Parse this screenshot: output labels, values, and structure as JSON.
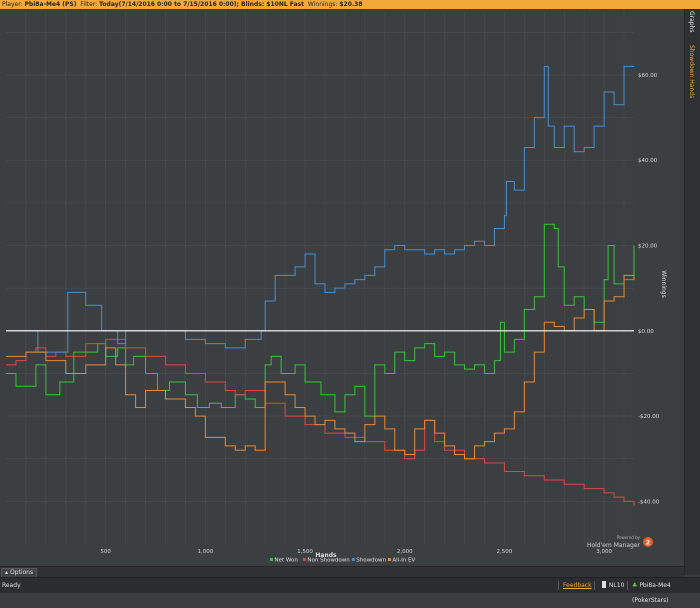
{
  "topbar": {
    "player_label": "Player:",
    "player_value": "Pbi8a-Me4 (PS)",
    "filter_label": "Filter:",
    "filter_value": "Today(7/14/2016 0:00 to 7/15/2016 0:00); Blinds: $10NL Fast",
    "winnings_label": "Winnings:",
    "winnings_value": "$20.38"
  },
  "side_tabs": {
    "graphs": "Graphs",
    "showdown_hands": "Showdown Hands"
  },
  "options_label": "Options",
  "status": {
    "ready": "Ready",
    "feedback": "Feedback",
    "limit": "NL10",
    "player": "Pbi8a-Me4 (PokerStars)"
  },
  "logo": {
    "line1": "Powered by",
    "line2": "Hold'em Manager"
  },
  "colors": {
    "net_won": "#37c33a",
    "non_showdown": "#d84a45",
    "showdown": "#4c8ecf",
    "all_in_ev": "#e58a36",
    "zero_line": "#ffffff",
    "grid": "#4a4d51"
  },
  "chart_data": {
    "type": "line",
    "xlabel": "Hands",
    "ylabel": "Winnings",
    "xlim": [
      0,
      3150
    ],
    "ylim": [
      -50,
      75
    ],
    "x_ticks": [
      500,
      1000,
      1500,
      2000,
      2500,
      3000
    ],
    "x_tick_labels": [
      "500",
      "1,000",
      "1,500",
      "2,000",
      "2,500",
      "3,000"
    ],
    "y_ticks": [
      60,
      40,
      20,
      0,
      -20,
      -40
    ],
    "y_tick_labels": [
      "$60.00",
      "$40.00",
      "$20.00",
      "$0.00",
      "-$20.00",
      "-$40.00"
    ],
    "grid": true,
    "legend_position": "bottom",
    "series": [
      {
        "name": "Net Won",
        "color_key": "net_won",
        "x": [
          0,
          50,
          150,
          200,
          270,
          340,
          460,
          500,
          560,
          600,
          640,
          700,
          760,
          820,
          900,
          960,
          1020,
          1080,
          1150,
          1200,
          1250,
          1300,
          1330,
          1380,
          1450,
          1500,
          1580,
          1650,
          1700,
          1750,
          1800,
          1850,
          1900,
          1950,
          2000,
          2050,
          2100,
          2150,
          2200,
          2250,
          2300,
          2350,
          2400,
          2450,
          2480,
          2500,
          2550,
          2600,
          2650,
          2700,
          2750,
          2770,
          2800,
          2850,
          2900,
          2950,
          3000,
          3020,
          3050,
          3100,
          3150
        ],
        "y": [
          -10,
          -13,
          -8,
          -15,
          -12,
          -5,
          -3,
          -6,
          -4,
          -8,
          -6,
          -10,
          -14,
          -12,
          -15,
          -18,
          -17,
          -18,
          -15,
          -16,
          -18,
          -8,
          -6,
          -10,
          -8,
          -12,
          -15,
          -19,
          -15,
          -13,
          -20,
          -8,
          -10,
          -5,
          -7,
          -4,
          -3,
          -6,
          -5,
          -8,
          -9,
          -8,
          -10,
          -7,
          2,
          -5,
          -2,
          5,
          8,
          25,
          24,
          15,
          6,
          8,
          5,
          2,
          12,
          20,
          11,
          12,
          20
        ]
      },
      {
        "name": "Non Showdown",
        "color_key": "non_showdown",
        "x": [
          0,
          50,
          100,
          150,
          200,
          250,
          300,
          400,
          500,
          600,
          700,
          800,
          900,
          1000,
          1100,
          1150,
          1200,
          1300,
          1400,
          1500,
          1600,
          1700,
          1800,
          1900,
          2000,
          2050,
          2100,
          2150,
          2200,
          2300,
          2400,
          2500,
          2600,
          2700,
          2800,
          2900,
          3000,
          3050,
          3100,
          3150
        ],
        "y": [
          -8,
          -7,
          -5,
          -4,
          -6,
          -5,
          -6,
          -3,
          -2,
          -4,
          -6,
          -8,
          -10,
          -12,
          -14,
          -15,
          -14,
          -17,
          -20,
          -22,
          -24,
          -25,
          -26,
          -28,
          -30,
          -28,
          -21,
          -26,
          -28,
          -30,
          -31,
          -33,
          -34,
          -35,
          -36,
          -37,
          -38,
          -39,
          -40,
          -41
        ]
      },
      {
        "name": "Showdown",
        "color_key": "showdown",
        "x": [
          0,
          150,
          160,
          300,
          310,
          400,
          480,
          560,
          600,
          700,
          800,
          900,
          1000,
          1100,
          1150,
          1200,
          1280,
          1300,
          1350,
          1450,
          1500,
          1550,
          1600,
          1650,
          1700,
          1750,
          1800,
          1850,
          1900,
          1950,
          2000,
          2050,
          2100,
          2150,
          2200,
          2250,
          2300,
          2350,
          2400,
          2450,
          2500,
          2510,
          2550,
          2600,
          2650,
          2700,
          2720,
          2750,
          2800,
          2850,
          2900,
          2950,
          3000,
          3050,
          3100,
          3150
        ],
        "y": [
          0,
          0,
          -5,
          -5,
          9,
          6,
          0,
          -3,
          0,
          0,
          0,
          -2,
          -3,
          -4,
          -4,
          -2,
          0,
          7,
          13,
          15,
          18,
          11,
          9,
          10,
          11,
          12,
          13,
          15,
          19,
          20,
          19,
          19,
          18,
          19,
          18,
          19,
          20,
          21,
          20,
          24,
          27,
          35,
          33,
          43,
          50,
          62,
          48,
          43,
          48,
          42,
          43,
          48,
          56,
          53,
          62,
          62
        ]
      },
      {
        "name": "All-In EV",
        "color_key": "all_in_ev",
        "x": [
          0,
          100,
          200,
          300,
          400,
          500,
          550,
          600,
          650,
          700,
          800,
          900,
          950,
          1000,
          1100,
          1150,
          1200,
          1250,
          1300,
          1400,
          1450,
          1500,
          1550,
          1600,
          1650,
          1700,
          1750,
          1800,
          1850,
          1900,
          1950,
          2000,
          2050,
          2100,
          2150,
          2200,
          2250,
          2300,
          2350,
          2400,
          2450,
          2500,
          2550,
          2600,
          2650,
          2700,
          2750,
          2800,
          2850,
          2900,
          2950,
          3000,
          3050,
          3100,
          3150
        ],
        "y": [
          -6,
          -5,
          -7,
          -10,
          -8,
          -4,
          -8,
          -15,
          -18,
          -14,
          -16,
          -18,
          -20,
          -25,
          -27,
          -28,
          -27,
          -28,
          -12,
          -15,
          -18,
          -20,
          -22,
          -21,
          -23,
          -24,
          -26,
          -22,
          -20,
          -23,
          -28,
          -29,
          -23,
          -21,
          -24,
          -27,
          -29,
          -30,
          -27,
          -26,
          -24,
          -23,
          -19,
          -12,
          -5,
          2,
          1,
          0,
          3,
          5,
          0,
          7,
          8,
          13,
          12
        ]
      }
    ]
  }
}
